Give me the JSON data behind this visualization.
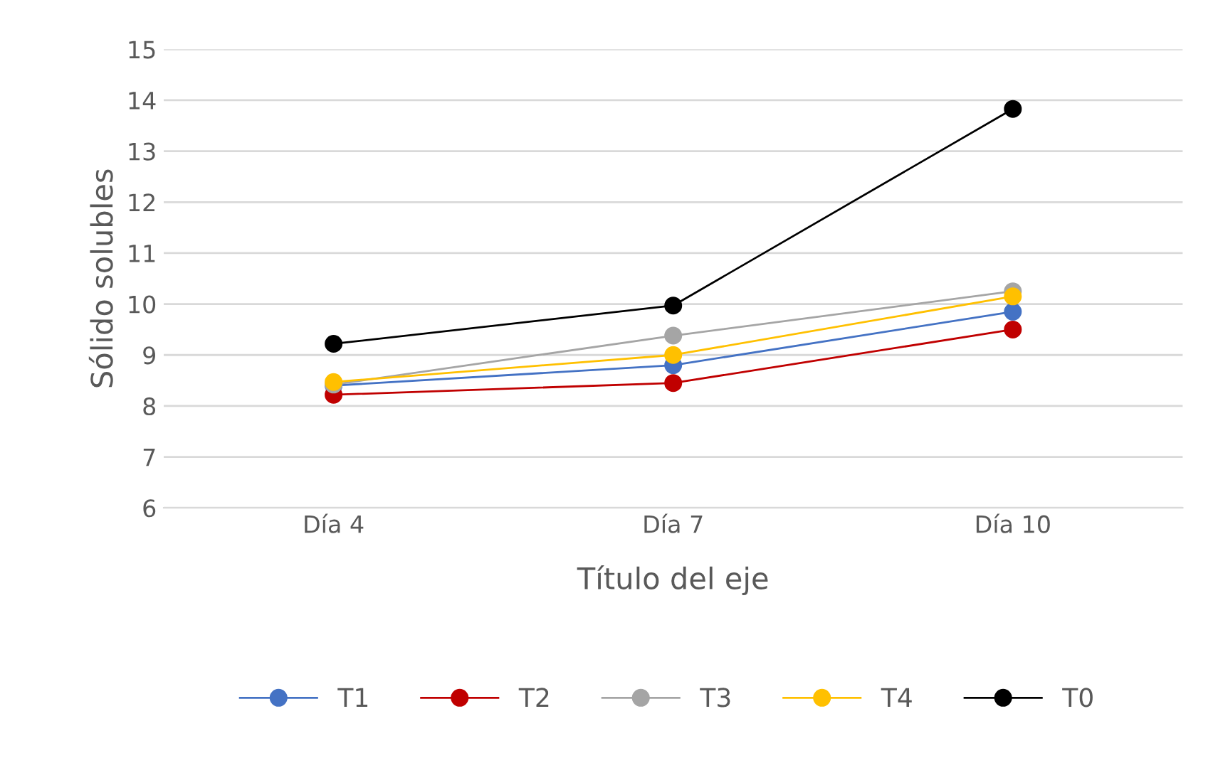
{
  "chart_data": {
    "type": "line",
    "ylabel": "Sólido solubles",
    "xlabel": "Título del eje",
    "categories": [
      "Día 4",
      "Día 7",
      "Día 10"
    ],
    "series": [
      {
        "name": "T1",
        "color": "#4472c4",
        "values": [
          8.4,
          8.8,
          9.85
        ]
      },
      {
        "name": "T2",
        "color": "#c00000",
        "values": [
          8.22,
          8.45,
          9.5
        ]
      },
      {
        "name": "T3",
        "color": "#a5a5a5",
        "values": [
          8.42,
          9.38,
          10.25
        ]
      },
      {
        "name": "T4",
        "color": "#ffc000",
        "values": [
          8.47,
          9.0,
          10.15
        ]
      },
      {
        "name": "T0",
        "color": "#000000",
        "values": [
          9.22,
          9.97,
          13.83
        ]
      }
    ],
    "ylim": [
      6,
      15
    ],
    "yticks": [
      6,
      7,
      8,
      9,
      10,
      11,
      12,
      13,
      14,
      15
    ],
    "grid": "y",
    "legend": "bottom",
    "marker": "circle"
  }
}
